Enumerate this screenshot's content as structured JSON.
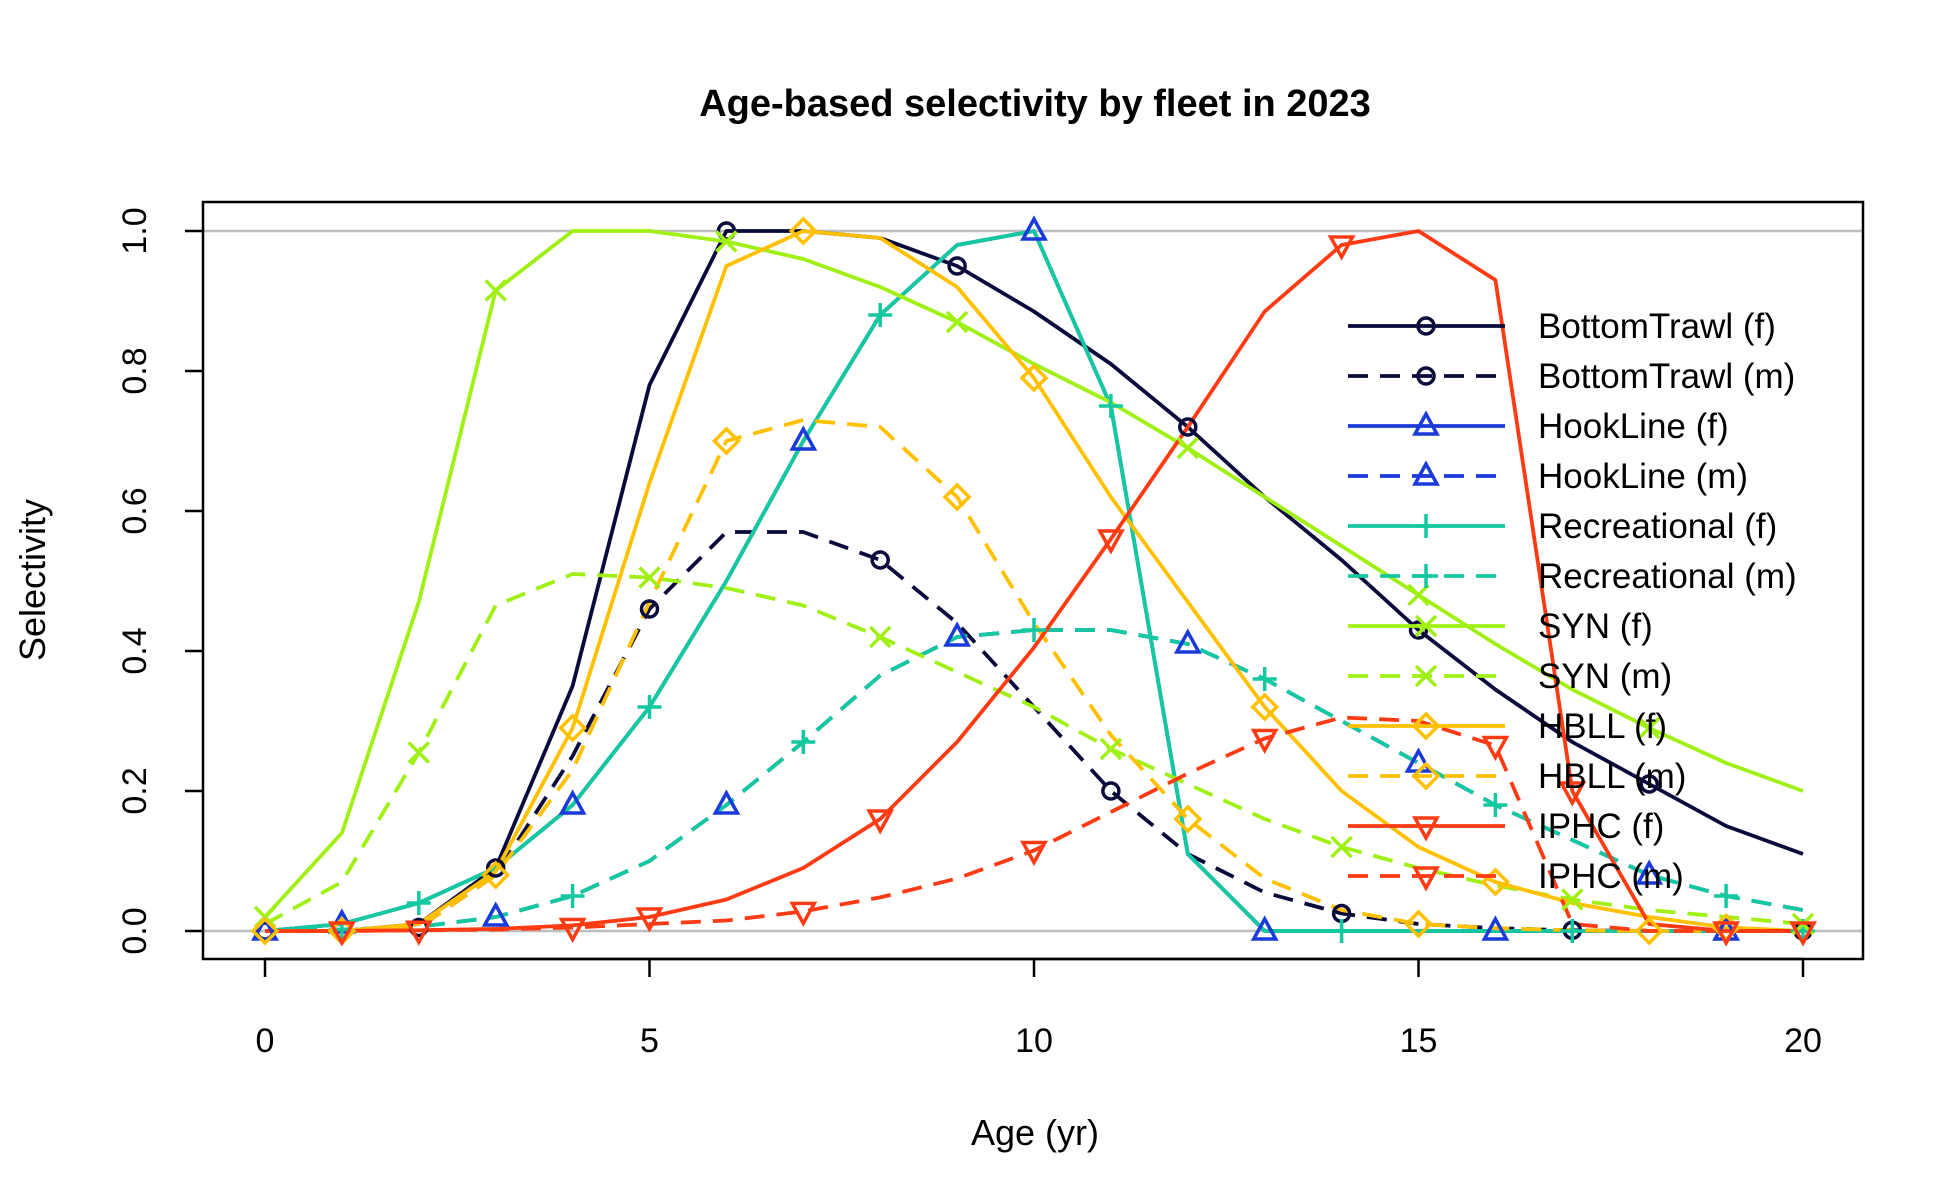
{
  "chart_data": {
    "type": "line",
    "title": "Age-based selectivity by fleet in 2023",
    "xlabel": "Age (yr)",
    "ylabel": "Selectivity",
    "xlim": [
      0,
      20
    ],
    "ylim": [
      0,
      1
    ],
    "x_ticks": [
      0,
      5,
      10,
      15,
      20
    ],
    "y_ticks": [
      0.0,
      0.2,
      0.4,
      0.6,
      0.8,
      1.0
    ],
    "y_tick_labels": [
      "0.0",
      "0.2",
      "0.4",
      "0.6",
      "0.8",
      "1.0"
    ],
    "reference_lines": [
      0,
      1
    ],
    "legend_position": "right",
    "x": [
      0,
      1,
      2,
      3,
      4,
      5,
      6,
      7,
      8,
      9,
      10,
      11,
      12,
      13,
      14,
      15,
      16,
      17,
      18,
      19,
      20
    ],
    "series": [
      {
        "name": "BottomTrawl (f)",
        "color": "#0a0a3c",
        "dash": false,
        "marker": "circle",
        "values": [
          0,
          0,
          0.01,
          0.09,
          0.35,
          0.78,
          1.0,
          1.0,
          0.99,
          0.95,
          0.885,
          0.81,
          0.72,
          0.62,
          0.53,
          0.43,
          0.345,
          0.27,
          0.21,
          0.15,
          0.11
        ]
      },
      {
        "name": "BottomTrawl (m)",
        "color": "#0a0a3c",
        "dash": true,
        "marker": "circle",
        "values": [
          0,
          0,
          0.005,
          0.08,
          0.25,
          0.46,
          0.57,
          0.57,
          0.53,
          0.44,
          0.32,
          0.2,
          0.11,
          0.055,
          0.025,
          0.01,
          0.004,
          0.001,
          0,
          0,
          0
        ]
      },
      {
        "name": "HookLine (f)",
        "color": "#1a3ad9",
        "dash": false,
        "marker": "triangle-up",
        "values": [
          0,
          0.01,
          0.04,
          0.09,
          0.18,
          0.32,
          0.5,
          0.7,
          0.88,
          0.98,
          1.0,
          0.75,
          0.11,
          0,
          0,
          0,
          0,
          0,
          0,
          0,
          0
        ]
      },
      {
        "name": "HookLine (m)",
        "color": "#1a3ad9",
        "dash": true,
        "marker": "triangle-up",
        "values": [
          0,
          0.002,
          0.006,
          0.02,
          0.05,
          0.1,
          0.18,
          0.27,
          0.365,
          0.42,
          0.43,
          0.43,
          0.41,
          0.36,
          0.3,
          0.24,
          0.18,
          0.13,
          0.08,
          0.05,
          0.03
        ]
      },
      {
        "name": "Recreational (f)",
        "color": "#14c8a0",
        "dash": false,
        "marker": "plus",
        "values": [
          0,
          0.01,
          0.04,
          0.09,
          0.18,
          0.32,
          0.5,
          0.7,
          0.88,
          0.98,
          1.0,
          0.75,
          0.11,
          0,
          0,
          0,
          0,
          0,
          0,
          0,
          0
        ]
      },
      {
        "name": "Recreational (m)",
        "color": "#14c8a0",
        "dash": true,
        "marker": "plus",
        "values": [
          0,
          0.002,
          0.006,
          0.02,
          0.05,
          0.1,
          0.18,
          0.27,
          0.365,
          0.42,
          0.43,
          0.43,
          0.41,
          0.36,
          0.3,
          0.24,
          0.18,
          0.13,
          0.08,
          0.05,
          0.03
        ]
      },
      {
        "name": "SYN (f)",
        "color": "#a0f014",
        "dash": false,
        "marker": "cross",
        "values": [
          0.02,
          0.14,
          0.47,
          0.915,
          1.0,
          1.0,
          0.985,
          0.96,
          0.92,
          0.87,
          0.81,
          0.755,
          0.69,
          0.62,
          0.55,
          0.48,
          0.41,
          0.345,
          0.29,
          0.24,
          0.2
        ]
      },
      {
        "name": "SYN (m)",
        "color": "#a0f014",
        "dash": true,
        "marker": "cross",
        "values": [
          0.01,
          0.07,
          0.255,
          0.465,
          0.51,
          0.505,
          0.49,
          0.465,
          0.42,
          0.37,
          0.32,
          0.26,
          0.21,
          0.16,
          0.12,
          0.09,
          0.065,
          0.045,
          0.03,
          0.02,
          0.01
        ]
      },
      {
        "name": "HBLL (f)",
        "color": "#ffc000",
        "dash": false,
        "marker": "diamond",
        "values": [
          0,
          0,
          0.01,
          0.085,
          0.29,
          0.64,
          0.95,
          1.0,
          0.99,
          0.92,
          0.79,
          0.62,
          0.47,
          0.32,
          0.2,
          0.12,
          0.07,
          0.04,
          0.02,
          0.005,
          0
        ]
      },
      {
        "name": "HBLL (m)",
        "color": "#ffc000",
        "dash": true,
        "marker": "diamond",
        "values": [
          0,
          0,
          0.005,
          0.08,
          0.23,
          0.47,
          0.7,
          0.73,
          0.72,
          0.62,
          0.44,
          0.28,
          0.16,
          0.075,
          0.03,
          0.01,
          0.004,
          0.001,
          0,
          0,
          0
        ]
      },
      {
        "name": "IPHC (f)",
        "color": "#ff3b14",
        "dash": false,
        "marker": "triangle-down",
        "values": [
          0,
          0,
          0.001,
          0.003,
          0.008,
          0.02,
          0.045,
          0.09,
          0.16,
          0.27,
          0.405,
          0.56,
          0.72,
          0.885,
          0.98,
          1.0,
          0.93,
          0.2,
          0.01,
          0,
          0
        ]
      },
      {
        "name": "IPHC (m)",
        "color": "#ff3b14",
        "dash": true,
        "marker": "triangle-down",
        "values": [
          0,
          0,
          0.001,
          0.002,
          0.005,
          0.01,
          0.015,
          0.028,
          0.048,
          0.075,
          0.115,
          0.17,
          0.225,
          0.275,
          0.305,
          0.3,
          0.265,
          0.01,
          0,
          0,
          0
        ]
      }
    ]
  }
}
